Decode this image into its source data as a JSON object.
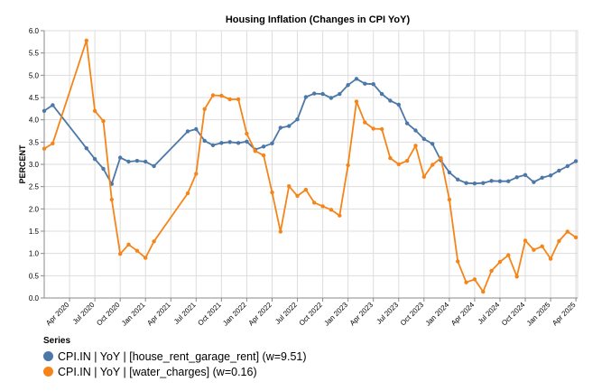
{
  "colors": {
    "house_rent": "#4c78a8",
    "water": "#f58518",
    "grid": "#dddddd",
    "axis": "#888888",
    "text": "#000000"
  },
  "chart_data": {
    "type": "line",
    "title": "Housing Inflation (Changes in CPI YoY)",
    "xlabel": "",
    "ylabel": "PERCENT",
    "ylim": [
      0,
      6
    ],
    "y_ticks": [
      "0.0",
      "0.5",
      "1.0",
      "1.5",
      "2.0",
      "2.5",
      "3.0",
      "3.5",
      "4.0",
      "4.5",
      "5.0",
      "5.5",
      "6.0"
    ],
    "x_ticks": [
      "Apr 2020",
      "Jul 2020",
      "Oct 2020",
      "Jan 2021",
      "Apr 2021",
      "Jul 2021",
      "Oct 2021",
      "Jan 2022",
      "Apr 2022",
      "Jul 2022",
      "Oct 2022",
      "Jan 2023",
      "Apr 2023",
      "Jul 2023",
      "Oct 2023",
      "Jan 2024",
      "Apr 2024",
      "Jul 2024",
      "Oct 2024",
      "Jan 2025",
      "Apr 2025"
    ],
    "grid": true,
    "legend_position": "bottom-left",
    "legend_title": "Series",
    "series": [
      {
        "name": "CPI.IN | YoY | [house_rent_garage_rent] (w=9.51)",
        "color": "#4c78a8",
        "points": [
          [
            "2020-01",
            4.2
          ],
          [
            "2020-02",
            4.33
          ],
          [
            "2020-06",
            3.36
          ],
          [
            "2020-07",
            3.12
          ],
          [
            "2020-08",
            2.9
          ],
          [
            "2020-09",
            2.56
          ],
          [
            "2020-10",
            3.15
          ],
          [
            "2020-11",
            3.06
          ],
          [
            "2020-12",
            3.08
          ],
          [
            "2021-01",
            3.06
          ],
          [
            "2021-02",
            2.96
          ],
          [
            "2021-06",
            3.74
          ],
          [
            "2021-07",
            3.79
          ],
          [
            "2021-08",
            3.53
          ],
          [
            "2021-09",
            3.43
          ],
          [
            "2021-10",
            3.48
          ],
          [
            "2021-11",
            3.5
          ],
          [
            "2021-12",
            3.48
          ],
          [
            "2022-01",
            3.51
          ],
          [
            "2022-02",
            3.33
          ],
          [
            "2022-03",
            3.4
          ],
          [
            "2022-04",
            3.47
          ],
          [
            "2022-05",
            3.82
          ],
          [
            "2022-06",
            3.86
          ],
          [
            "2022-07",
            4.01
          ],
          [
            "2022-08",
            4.51
          ],
          [
            "2022-09",
            4.59
          ],
          [
            "2022-10",
            4.58
          ],
          [
            "2022-11",
            4.49
          ],
          [
            "2022-12",
            4.58
          ],
          [
            "2023-01",
            4.78
          ],
          [
            "2023-02",
            4.92
          ],
          [
            "2023-03",
            4.81
          ],
          [
            "2023-04",
            4.8
          ],
          [
            "2023-05",
            4.58
          ],
          [
            "2023-06",
            4.43
          ],
          [
            "2023-07",
            4.34
          ],
          [
            "2023-08",
            3.92
          ],
          [
            "2023-09",
            3.76
          ],
          [
            "2023-10",
            3.57
          ],
          [
            "2023-11",
            3.46
          ],
          [
            "2023-12",
            3.09
          ],
          [
            "2024-01",
            2.82
          ],
          [
            "2024-02",
            2.66
          ],
          [
            "2024-03",
            2.58
          ],
          [
            "2024-04",
            2.57
          ],
          [
            "2024-05",
            2.58
          ],
          [
            "2024-06",
            2.63
          ],
          [
            "2024-07",
            2.62
          ],
          [
            "2024-08",
            2.62
          ],
          [
            "2024-09",
            2.71
          ],
          [
            "2024-10",
            2.76
          ],
          [
            "2024-11",
            2.6
          ],
          [
            "2024-12",
            2.7
          ],
          [
            "2025-01",
            2.75
          ],
          [
            "2025-02",
            2.86
          ],
          [
            "2025-03",
            2.96
          ],
          [
            "2025-04",
            3.07
          ]
        ]
      },
      {
        "name": "CPI.IN | YoY | [water_charges] (w=0.16)",
        "color": "#f58518",
        "points": [
          [
            "2020-01",
            3.35
          ],
          [
            "2020-02",
            3.47
          ],
          [
            "2020-06",
            5.78
          ],
          [
            "2020-07",
            4.2
          ],
          [
            "2020-08",
            3.97
          ],
          [
            "2020-09",
            2.21
          ],
          [
            "2020-10",
            0.99
          ],
          [
            "2020-11",
            1.2
          ],
          [
            "2020-12",
            1.06
          ],
          [
            "2021-01",
            0.9
          ],
          [
            "2021-02",
            1.27
          ],
          [
            "2021-06",
            2.35
          ],
          [
            "2021-07",
            2.79
          ],
          [
            "2021-08",
            4.24
          ],
          [
            "2021-09",
            4.55
          ],
          [
            "2021-10",
            4.54
          ],
          [
            "2021-11",
            4.46
          ],
          [
            "2021-12",
            4.46
          ],
          [
            "2022-01",
            3.69
          ],
          [
            "2022-02",
            3.3
          ],
          [
            "2022-03",
            3.2
          ],
          [
            "2022-04",
            2.37
          ],
          [
            "2022-05",
            1.49
          ],
          [
            "2022-06",
            2.51
          ],
          [
            "2022-07",
            2.29
          ],
          [
            "2022-08",
            2.43
          ],
          [
            "2022-09",
            2.14
          ],
          [
            "2022-10",
            2.06
          ],
          [
            "2022-11",
            1.98
          ],
          [
            "2022-12",
            1.85
          ],
          [
            "2023-01",
            2.98
          ],
          [
            "2023-02",
            4.41
          ],
          [
            "2023-03",
            3.94
          ],
          [
            "2023-04",
            3.8
          ],
          [
            "2023-05",
            3.79
          ],
          [
            "2023-06",
            3.14
          ],
          [
            "2023-07",
            3.0
          ],
          [
            "2023-08",
            3.08
          ],
          [
            "2023-09",
            3.42
          ],
          [
            "2023-10",
            2.72
          ],
          [
            "2023-11",
            2.99
          ],
          [
            "2023-12",
            3.14
          ],
          [
            "2024-01",
            2.21
          ],
          [
            "2024-02",
            0.82
          ],
          [
            "2024-03",
            0.35
          ],
          [
            "2024-04",
            0.42
          ],
          [
            "2024-05",
            0.14
          ],
          [
            "2024-06",
            0.61
          ],
          [
            "2024-07",
            0.81
          ],
          [
            "2024-08",
            0.96
          ],
          [
            "2024-09",
            0.48
          ],
          [
            "2024-10",
            1.29
          ],
          [
            "2024-11",
            1.08
          ],
          [
            "2024-12",
            1.16
          ],
          [
            "2025-01",
            0.88
          ],
          [
            "2025-02",
            1.28
          ],
          [
            "2025-03",
            1.49
          ],
          [
            "2025-04",
            1.36
          ]
        ]
      }
    ]
  }
}
